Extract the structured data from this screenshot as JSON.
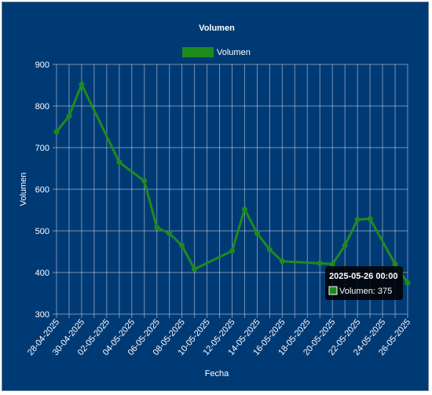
{
  "chart_data": {
    "type": "line",
    "title": "Volumen",
    "xlabel": "Fecha",
    "ylabel": "Volumen",
    "ylim": [
      300,
      900
    ],
    "yticks": [
      300,
      400,
      500,
      600,
      700,
      800,
      900
    ],
    "xlim": [
      "2025-04-28",
      "2025-05-26"
    ],
    "xticks": [
      "28-04-2025",
      "30-04-2025",
      "02-05-2025",
      "04-05-2025",
      "06-05-2025",
      "08-05-2025",
      "10-05-2025",
      "12-05-2025",
      "14-05-2025",
      "16-05-2025",
      "18-05-2025",
      "20-05-2025",
      "22-05-2025",
      "24-05-2025",
      "26-05-2025"
    ],
    "grid": true,
    "legend_position": "top",
    "series": [
      {
        "name": "Volumen",
        "color": "#1e8a1e",
        "points": [
          {
            "x": "2025-04-28",
            "y": 738
          },
          {
            "x": "2025-04-29",
            "y": 776
          },
          {
            "x": "2025-04-30",
            "y": 852
          },
          {
            "x": "2025-05-03",
            "y": 665
          },
          {
            "x": "2025-05-05",
            "y": 620
          },
          {
            "x": "2025-05-06",
            "y": 508
          },
          {
            "x": "2025-05-07",
            "y": 494
          },
          {
            "x": "2025-05-08",
            "y": 465
          },
          {
            "x": "2025-05-09",
            "y": 408
          },
          {
            "x": "2025-05-12",
            "y": 452
          },
          {
            "x": "2025-05-13",
            "y": 552
          },
          {
            "x": "2025-05-14",
            "y": 494
          },
          {
            "x": "2025-05-15",
            "y": 455
          },
          {
            "x": "2025-05-16",
            "y": 427
          },
          {
            "x": "2025-05-19",
            "y": 422
          },
          {
            "x": "2025-05-20",
            "y": 420
          },
          {
            "x": "2025-05-21",
            "y": 465
          },
          {
            "x": "2025-05-22",
            "y": 527
          },
          {
            "x": "2025-05-23",
            "y": 529
          },
          {
            "x": "2025-05-25",
            "y": 420
          },
          {
            "x": "2025-05-26",
            "y": 375
          }
        ]
      }
    ],
    "tooltip": {
      "title": "2025-05-26 00:00",
      "label": "Volumen: 375"
    }
  }
}
